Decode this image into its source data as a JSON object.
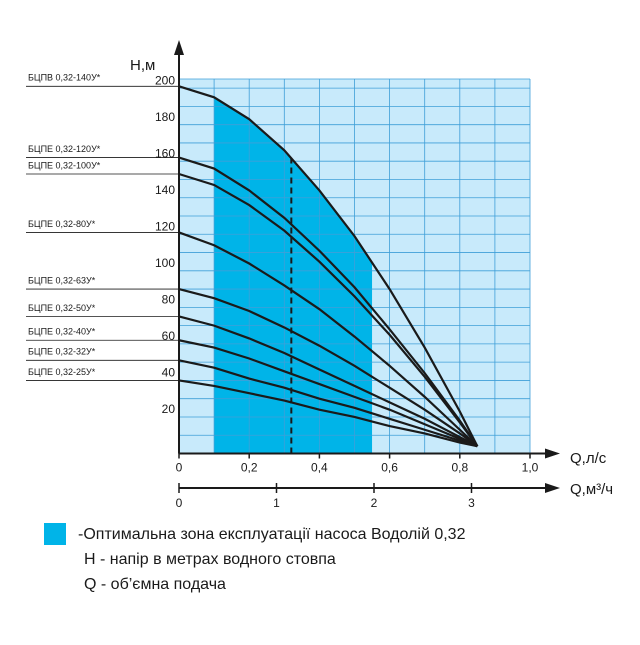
{
  "chart_data": {
    "type": "line",
    "y_axis_label": "H,м",
    "x_axis_label": "Q,л/с",
    "x2_axis_label": "Q,м³/ч",
    "x": [
      0,
      0.1,
      0.2,
      0.3,
      0.4,
      0.5,
      0.6,
      0.7,
      0.8,
      0.85
    ],
    "series": [
      {
        "name": "БЦПВ 0,32-140У*",
        "color": "#1a1a1a",
        "values": [
          201,
          195,
          183,
          166,
          144,
          119,
          90,
          58,
          23,
          4
        ]
      },
      {
        "name": "БЦПЕ 0,32-120У*",
        "color": "#1a1a1a",
        "values": [
          162,
          156,
          144,
          129,
          111,
          91,
          68,
          44,
          18,
          4
        ]
      },
      {
        "name": "БЦПЕ 0,32-100У*",
        "color": "#1a1a1a",
        "values": [
          153,
          147,
          136,
          122,
          105,
          86,
          65,
          42,
          17,
          4
        ]
      },
      {
        "name": "БЦПЕ 0,32-80У*",
        "color": "#1a1a1a",
        "values": [
          121,
          114,
          104,
          92,
          79,
          64,
          48,
          31,
          13,
          4
        ]
      },
      {
        "name": "БЦПЕ 0,32-63У*",
        "color": "#1a1a1a",
        "values": [
          90,
          85,
          78,
          69,
          59,
          48,
          36,
          24,
          11,
          4
        ]
      },
      {
        "name": "БЦПЕ 0,32-50У*",
        "color": "#1a1a1a",
        "values": [
          75,
          70,
          63,
          55,
          46,
          37,
          28,
          19,
          9,
          4
        ]
      },
      {
        "name": "БЦПЕ 0,32-40У*",
        "color": "#1a1a1a",
        "values": [
          62,
          58,
          52,
          45,
          38,
          31,
          24,
          16,
          8,
          4
        ]
      },
      {
        "name": "БЦПЕ 0,32-32У*",
        "color": "#1a1a1a",
        "values": [
          51,
          47,
          41,
          36,
          30,
          25,
          19,
          13,
          7,
          4
        ]
      },
      {
        "name": "БЦПЕ 0,32-25У*",
        "color": "#1a1a1a",
        "values": [
          40,
          37,
          33,
          29,
          24,
          20,
          15,
          11,
          6,
          4
        ]
      }
    ],
    "xlim": [
      0,
      1.0
    ],
    "ylim": [
      0,
      205
    ],
    "x2lim": [
      0,
      3.6
    ],
    "xticks": [
      0,
      {
        "value": 0.2,
        "label": "0,2"
      },
      {
        "value": 0.4,
        "label": "0,4"
      },
      {
        "value": 0.6,
        "label": "0,6"
      },
      {
        "value": 0.8,
        "label": "0,8"
      },
      {
        "value": 1.0,
        "label": "1,0"
      }
    ],
    "x2ticks": [
      0,
      1,
      2,
      3
    ],
    "yticks": [
      20,
      40,
      60,
      80,
      100,
      120,
      140,
      160,
      180,
      200
    ],
    "x_grid_step": 0.1,
    "y_grid_step": 10,
    "grid_color": "#3f9fd8",
    "background_color": "#c8eafb",
    "optimal_zone": {
      "xlim": [
        0.1,
        0.55
      ],
      "color": "#00b4e8",
      "label": "-Оптимальна зона експлуатації насоса Водолій 0,32"
    },
    "dashed_line_x": 0.32,
    "notes": [
      "H - напір в метрах водного стовпа",
      "Q - об’ємна подача"
    ]
  }
}
